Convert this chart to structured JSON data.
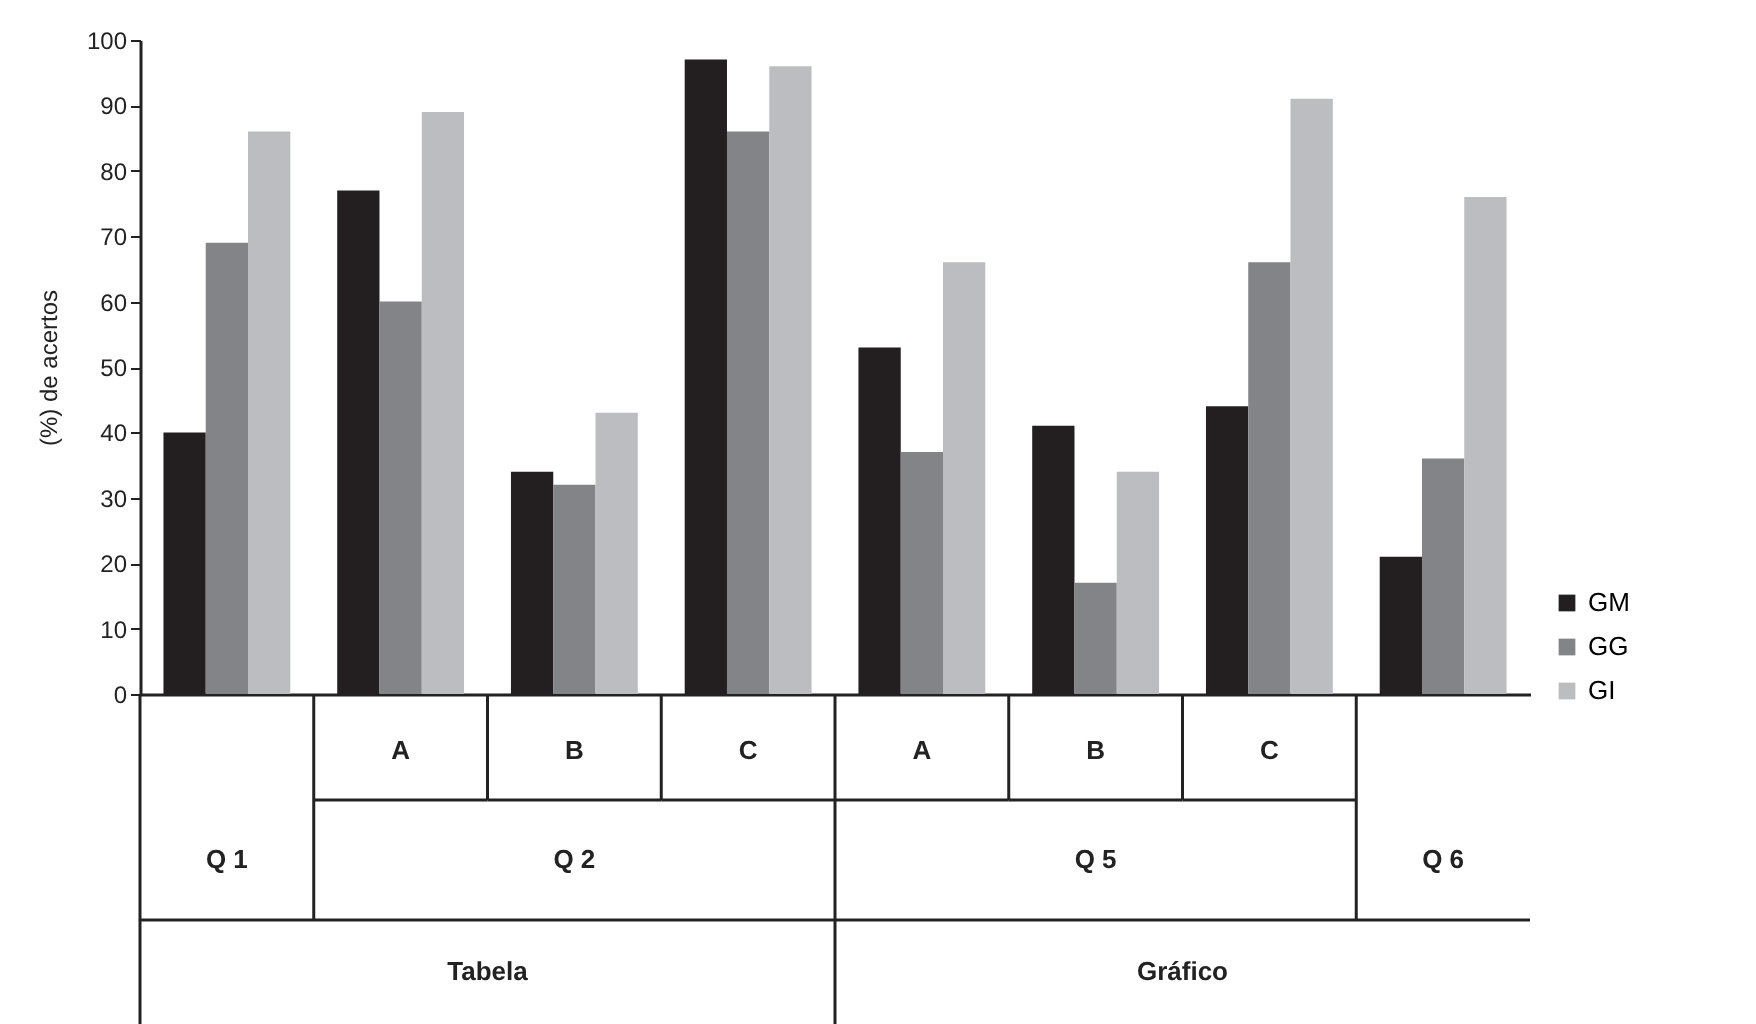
{
  "chart_data": {
    "type": "bar",
    "ylabel": "(%) de acertos",
    "categories": [
      null,
      "A",
      "B",
      "C",
      "A",
      "B",
      "C",
      null
    ],
    "series": [
      {
        "name": "GM",
        "color": "#231f20",
        "values": [
          40,
          77,
          34,
          97,
          53,
          41,
          44,
          21
        ]
      },
      {
        "name": "GG",
        "color": "#838488",
        "values": [
          69,
          60,
          32,
          86,
          37,
          17,
          66,
          36
        ]
      },
      {
        "name": "GI",
        "color": "#bcbdc1",
        "values": [
          86,
          89,
          43,
          96,
          66,
          34,
          91,
          76
        ]
      }
    ],
    "annotations": [
      "Q 1",
      "Q 2",
      "Q 5",
      "Q 6",
      "Tabela",
      "Gráfico"
    ],
    "ylim": [
      0,
      100
    ],
    "yticks": [
      0,
      10,
      20,
      30,
      40,
      50,
      60,
      70,
      80,
      90,
      100
    ],
    "grid": false,
    "legend": "right"
  }
}
